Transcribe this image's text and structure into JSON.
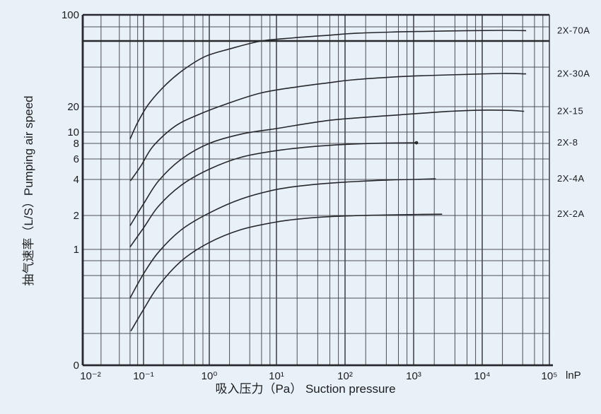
{
  "chart_data": {
    "type": "line",
    "title": "",
    "x_axis": {
      "title": "吸入压力（Pa） Suction pressure",
      "end_label": "lnP",
      "scale": "log",
      "range": [
        0.01,
        100000
      ],
      "tick_labels": [
        "10⁻²",
        "10⁻¹",
        "10⁰",
        "10¹",
        "10²",
        "10³",
        "10⁴",
        "10⁵"
      ],
      "tick_decades": [
        -2,
        -1,
        0,
        1,
        2,
        3,
        4,
        5
      ],
      "minor_multiples": [
        2,
        4,
        6,
        8
      ]
    },
    "y_axis": {
      "title": "抽气速率（L/S）Pumping air speed",
      "scale": "log",
      "range": [
        0.1,
        100
      ],
      "tick_labels": [
        "100",
        "20",
        "10",
        "8",
        "6",
        "4",
        "2",
        "1",
        "0"
      ],
      "tick_values": [
        100,
        20,
        10,
        8,
        6,
        4,
        2,
        1,
        0.1
      ],
      "gridline_values": [
        0.2,
        0.4,
        0.6,
        0.8,
        1,
        2,
        4,
        6,
        8,
        10,
        20,
        40,
        60,
        80,
        100
      ],
      "bold_gridline_values": [
        60,
        100
      ]
    },
    "grid": true,
    "legend_position": "right-margin",
    "series": [
      {
        "name": "2X-70A",
        "end_dot": false,
        "points": [
          [
            0.06,
            8.7
          ],
          [
            0.08,
            13
          ],
          [
            0.12,
            21
          ],
          [
            0.22,
            29.5
          ],
          [
            0.4,
            38
          ],
          [
            0.85,
            47
          ],
          [
            2,
            53
          ],
          [
            6,
            60
          ],
          [
            18,
            64
          ],
          [
            60,
            67.5
          ],
          [
            130,
            70
          ],
          [
            500,
            72
          ],
          [
            1500,
            73
          ],
          [
            6000,
            74
          ],
          [
            20000,
            74.5
          ],
          [
            45000,
            74
          ]
        ]
      },
      {
        "name": "2X-30A",
        "end_dot": false,
        "points": [
          [
            0.061,
            3.9
          ],
          [
            0.09,
            5.2
          ],
          [
            0.14,
            7.6
          ],
          [
            0.3,
            11.7
          ],
          [
            0.67,
            16
          ],
          [
            1.8,
            21
          ],
          [
            6,
            25.5
          ],
          [
            22,
            28.5
          ],
          [
            60,
            30.5
          ],
          [
            130,
            32
          ],
          [
            600,
            33.8
          ],
          [
            1500,
            34.5
          ],
          [
            6000,
            35.2
          ],
          [
            20000,
            35.8
          ],
          [
            45000,
            35.5
          ]
        ]
      },
      {
        "name": "2X-15",
        "end_dot": false,
        "points": [
          [
            0.06,
            1.62
          ],
          [
            0.1,
            2.5
          ],
          [
            0.17,
            3.9
          ],
          [
            0.38,
            6
          ],
          [
            1,
            8
          ],
          [
            3.2,
            9.7
          ],
          [
            10,
            11
          ],
          [
            19,
            12
          ],
          [
            64,
            13.9
          ],
          [
            250,
            15.2
          ],
          [
            550,
            15.9
          ],
          [
            2900,
            17.5
          ],
          [
            9500,
            18.2
          ],
          [
            25000,
            18.1
          ],
          [
            42000,
            17.6
          ]
        ]
      },
      {
        "name": "2X-8",
        "end_dot": true,
        "points": [
          [
            0.06,
            1.05
          ],
          [
            0.1,
            1.55
          ],
          [
            0.17,
            2.4
          ],
          [
            0.38,
            3.6
          ],
          [
            1,
            4.9
          ],
          [
            3,
            6.2
          ],
          [
            10,
            7
          ],
          [
            30,
            7.5
          ],
          [
            100,
            7.85
          ],
          [
            400,
            8.05
          ],
          [
            1100,
            8.1
          ]
        ]
      },
      {
        "name": "2X-4A",
        "end_dot": false,
        "points": [
          [
            0.06,
            0.4
          ],
          [
            0.1,
            0.62
          ],
          [
            0.17,
            0.95
          ],
          [
            0.38,
            1.5
          ],
          [
            1,
            2.1
          ],
          [
            3,
            2.75
          ],
          [
            10,
            3.3
          ],
          [
            30,
            3.6
          ],
          [
            100,
            3.8
          ],
          [
            400,
            3.95
          ],
          [
            1000,
            4.0
          ],
          [
            2100,
            4.05
          ]
        ]
      },
      {
        "name": "2X-2A",
        "end_dot": false,
        "points": [
          [
            0.062,
            0.21
          ],
          [
            0.1,
            0.32
          ],
          [
            0.17,
            0.5
          ],
          [
            0.38,
            0.8
          ],
          [
            1,
            1.15
          ],
          [
            3,
            1.5
          ],
          [
            10,
            1.75
          ],
          [
            30,
            1.9
          ],
          [
            100,
            1.98
          ],
          [
            400,
            2.02
          ],
          [
            1200,
            2.04
          ],
          [
            2600,
            2.05
          ]
        ]
      }
    ],
    "colors": {
      "background": "#e9f1f8",
      "grid_minor": "#4a4e53",
      "grid_major": "#3a3e42",
      "axis": "#26282b",
      "curve": "#26282b",
      "text": "#1b1d1f"
    }
  }
}
